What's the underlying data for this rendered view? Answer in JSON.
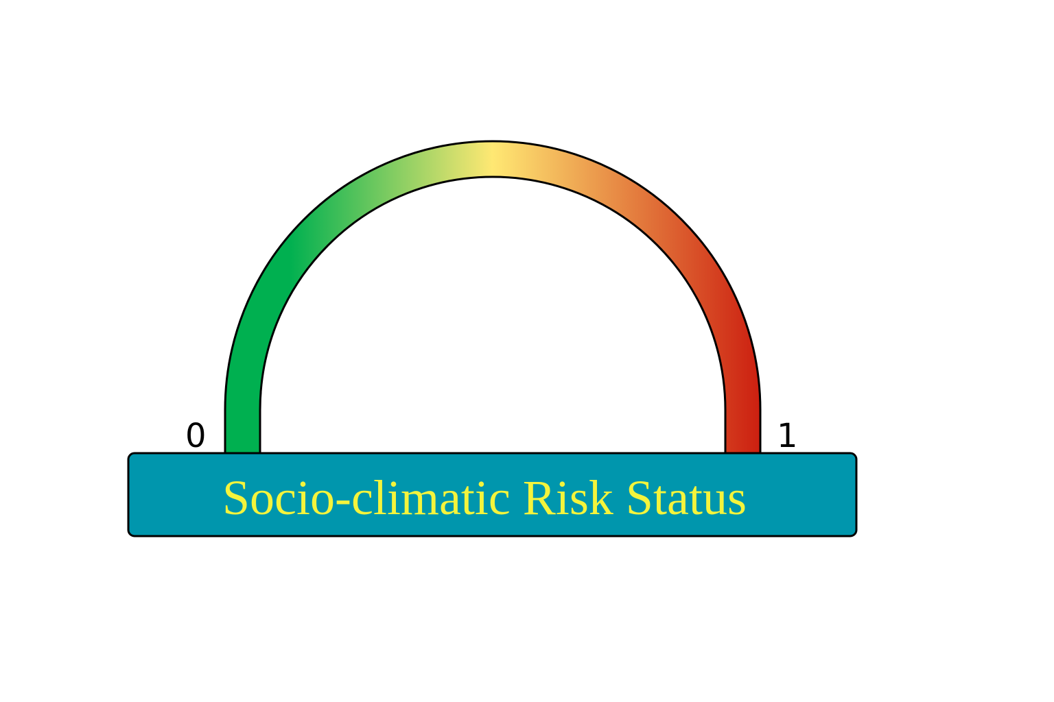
{
  "gauge": {
    "min_label": "0",
    "max_label": "1",
    "colors": {
      "low": "#00b050",
      "mid": "#ffe873",
      "high": "#cc1f10",
      "outline": "#000000"
    }
  },
  "banner": {
    "title": "Socio-climatic Risk Status",
    "background_color": "#0096ad",
    "text_color": "#f4f43c"
  }
}
